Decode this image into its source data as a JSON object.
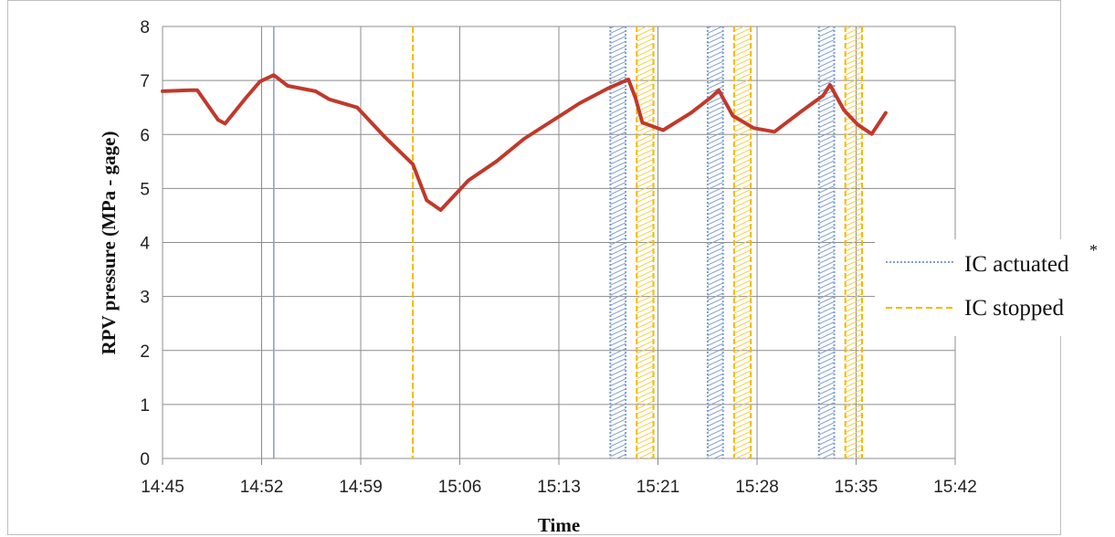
{
  "chart_data": {
    "type": "line",
    "title": "",
    "xlabel": "Time",
    "ylabel": "RPV pressure  (MPa - gage)",
    "ylim": [
      0,
      8
    ],
    "yticks": [
      "0",
      "1",
      "2",
      "3",
      "4",
      "5",
      "6",
      "7",
      "8"
    ],
    "xticks": [
      "14:45",
      "14:52",
      "14:59",
      "15:06",
      "15:13",
      "15:21",
      "15:28",
      "15:35",
      "15:42"
    ],
    "grid": true,
    "legend_position": "right",
    "colors": {
      "pressure": "#c0392b",
      "ic_actuated": "#7f9fcf",
      "ic_stopped": "#f5b800",
      "grid": "#8c8c8c"
    },
    "series": [
      {
        "x": [
          "14:45",
          "14:47",
          "14:47.5",
          "14:49",
          "14:49.5",
          "14:51",
          "14:52",
          "14:53",
          "14:54",
          "14:56",
          "14:57",
          "14:59",
          "15:01",
          "15:03",
          "15:04",
          "15:05",
          "15:07",
          "15:09",
          "15:11",
          "15:13",
          "15:15",
          "15:17",
          "15:18.5",
          "15:19",
          "15:19.5",
          "15:21",
          "15:23",
          "15:24.5",
          "15:25",
          "15:26",
          "15:27.5",
          "15:29",
          "15:31",
          "15:32.5",
          "15:33",
          "15:34",
          "15:35",
          "15:36",
          "15:37"
        ],
        "values": [
          6.8,
          6.82,
          6.82,
          6.27,
          6.2,
          6.68,
          6.98,
          7.1,
          6.9,
          6.8,
          6.65,
          6.5,
          5.95,
          5.45,
          4.78,
          4.6,
          5.15,
          5.5,
          5.92,
          6.25,
          6.58,
          6.85,
          7.02,
          6.68,
          6.22,
          6.08,
          6.4,
          6.7,
          6.82,
          6.35,
          6.12,
          6.05,
          6.44,
          6.72,
          6.92,
          6.45,
          6.18,
          6.01,
          6.4
        ]
      }
    ],
    "markers": {
      "ic_actuated_lines": [
        "14:53"
      ],
      "ic_stopped_lines": [
        "15:03"
      ],
      "ic_actuated_bands": [
        [
          "15:17.2",
          "15:18.3"
        ],
        [
          "15:24.2",
          "15:25.3"
        ],
        [
          "15:32.2",
          "15:33.3"
        ]
      ],
      "ic_stopped_bands": [
        [
          "15:19.1",
          "15:20.3"
        ],
        [
          "15:26.1",
          "15:27.3"
        ],
        [
          "15:34.1",
          "15:35.3"
        ]
      ]
    },
    "legend": [
      {
        "label": "IC actuated",
        "style": "dotted",
        "color": "#7f9fcf"
      },
      {
        "label": "IC stopped",
        "style": "dashed",
        "color": "#f5b800"
      }
    ],
    "annotation": "*"
  }
}
